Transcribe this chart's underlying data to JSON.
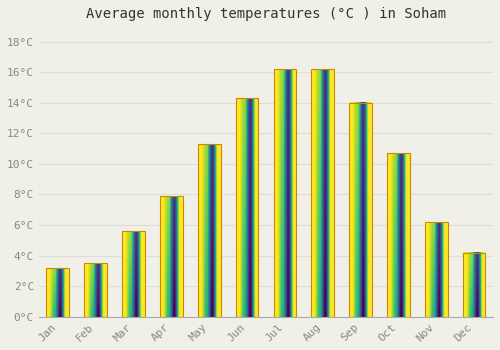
{
  "title": "Average monthly temperatures (°C ) in Soham",
  "months": [
    "Jan",
    "Feb",
    "Mar",
    "Apr",
    "May",
    "Jun",
    "Jul",
    "Aug",
    "Sep",
    "Oct",
    "Nov",
    "Dec"
  ],
  "values": [
    3.2,
    3.5,
    5.6,
    7.9,
    11.3,
    14.3,
    16.2,
    16.2,
    14.0,
    10.7,
    6.2,
    4.2
  ],
  "bar_color": "#FFA500",
  "bar_edge_color": "#B8860B",
  "background_color": "#F0F0E8",
  "grid_color": "#DDDDDD",
  "ylim": [
    0,
    19
  ],
  "yticks": [
    0,
    2,
    4,
    6,
    8,
    10,
    12,
    14,
    16,
    18
  ],
  "title_fontsize": 10,
  "tick_fontsize": 8,
  "bar_width": 0.6
}
